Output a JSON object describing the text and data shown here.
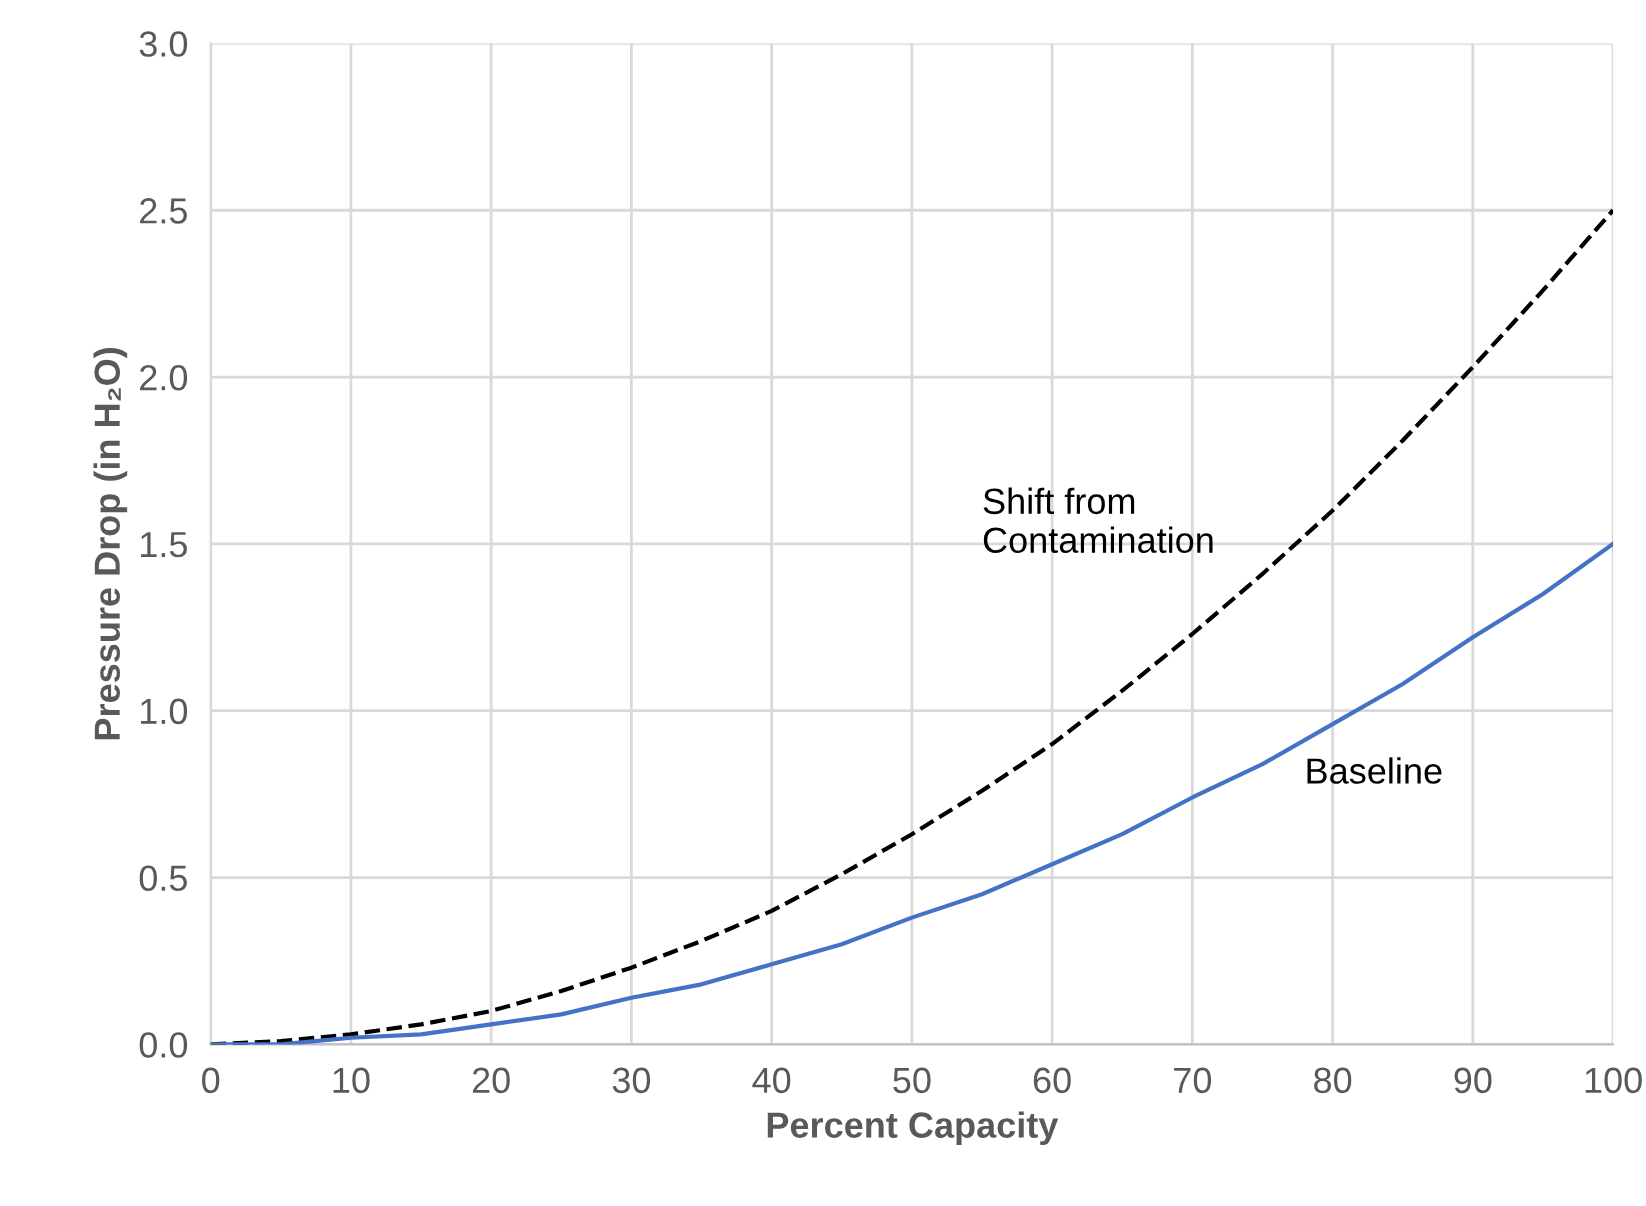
{
  "chart_data": {
    "type": "line",
    "xlabel": "Percent Capacity",
    "ylabel": "Pressure Drop (in H₂O)",
    "x": [
      0,
      5,
      10,
      15,
      20,
      25,
      30,
      35,
      40,
      45,
      50,
      55,
      60,
      65,
      70,
      75,
      80,
      85,
      90,
      95,
      100
    ],
    "series": [
      {
        "name": "Shift from\nContamination",
        "color": "#000000",
        "line_style": "dashed",
        "values": [
          0,
          0.01,
          0.03,
          0.06,
          0.1,
          0.16,
          0.23,
          0.31,
          0.4,
          0.51,
          0.63,
          0.76,
          0.9,
          1.06,
          1.23,
          1.41,
          1.6,
          1.81,
          2.03,
          2.26,
          2.5
        ]
      },
      {
        "name": "Baseline",
        "color": "#4472c4",
        "line_style": "solid",
        "values": [
          0,
          0.0,
          0.02,
          0.03,
          0.06,
          0.09,
          0.14,
          0.18,
          0.24,
          0.3,
          0.38,
          0.45,
          0.54,
          0.63,
          0.74,
          0.84,
          0.96,
          1.08,
          1.22,
          1.35,
          1.5
        ]
      }
    ],
    "xlim": [
      0,
      100
    ],
    "xticks": [
      0,
      10,
      20,
      30,
      40,
      50,
      60,
      70,
      80,
      90,
      100
    ],
    "ylim": [
      0,
      3
    ],
    "yticks": [
      {
        "value": 0,
        "label": "0.0"
      },
      {
        "value": 0.5,
        "label": "0.5"
      },
      {
        "value": 1,
        "label": "1.0"
      },
      {
        "value": 1.5,
        "label": "1.5"
      },
      {
        "value": 2,
        "label": "2.0"
      },
      {
        "value": 2.5,
        "label": "2.5"
      },
      {
        "value": 3,
        "label": "3.0"
      }
    ],
    "grid": true,
    "legend": false
  }
}
